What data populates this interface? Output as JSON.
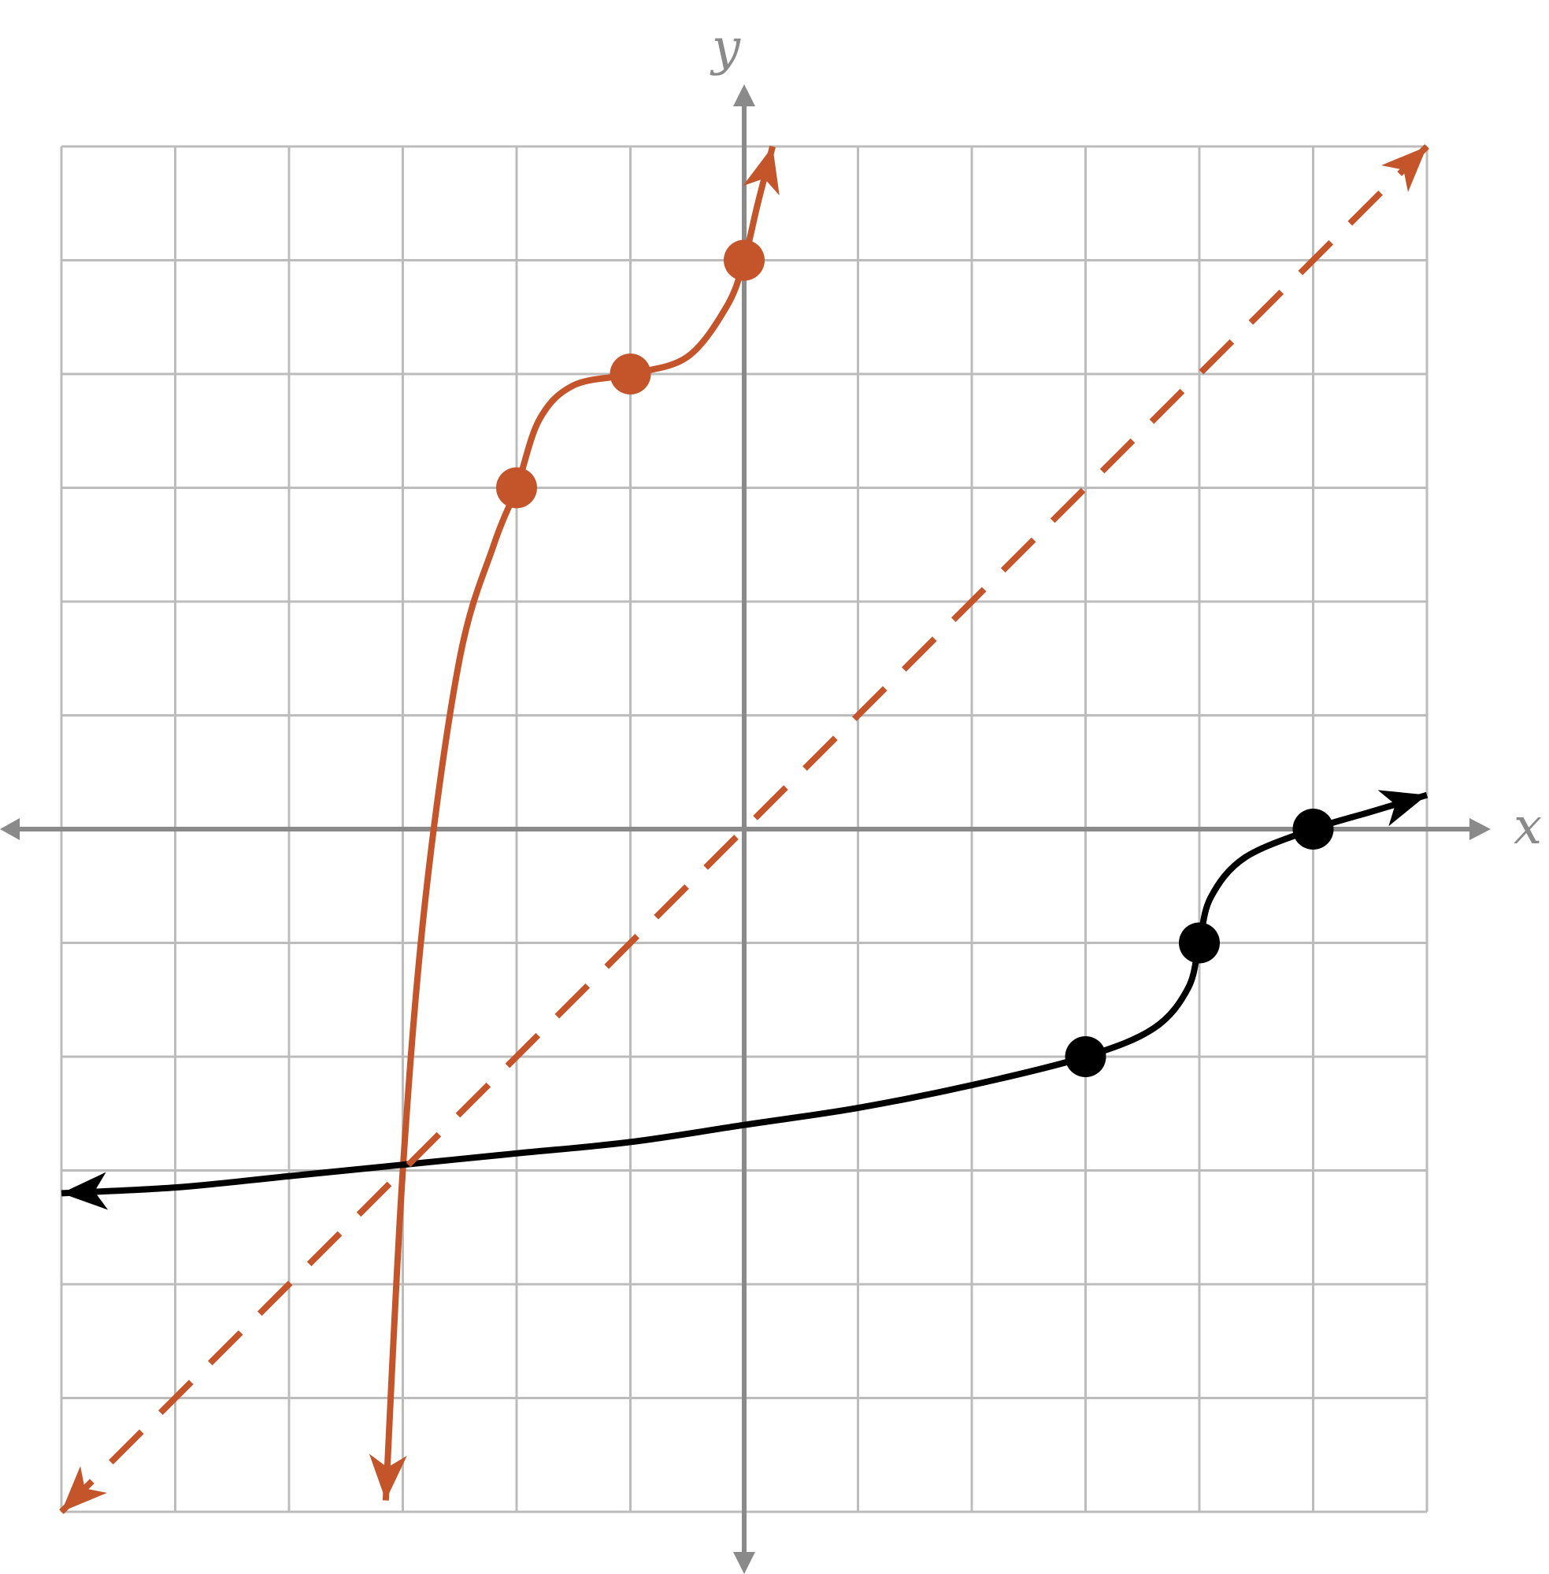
{
  "chart_data": {
    "type": "line",
    "title": "",
    "xlabel": "x",
    "ylabel": "y",
    "xlim": [
      -6,
      6
    ],
    "ylim": [
      -6,
      6
    ],
    "grid": true,
    "series": [
      {
        "style": "solid",
        "color": "#c4542a",
        "marked_points": [
          [
            -2,
            3
          ],
          [
            -1,
            4
          ],
          [
            0,
            5
          ]
        ],
        "arrow_ends": [
          [
            -3.15,
            -5.9
          ],
          [
            0.25,
            6.0
          ]
        ],
        "curve": [
          [
            -3.15,
            -5.9
          ],
          [
            -3,
            -3
          ],
          [
            -2.8,
            -0.6
          ],
          [
            -2.5,
            1.5
          ],
          [
            -2.2,
            2.5
          ],
          [
            -2,
            3
          ],
          [
            -1.8,
            3.6
          ],
          [
            -1.5,
            3.9
          ],
          [
            -1,
            4
          ],
          [
            -0.5,
            4.15
          ],
          [
            -0.15,
            4.6
          ],
          [
            0,
            5
          ],
          [
            0.12,
            5.5
          ],
          [
            0.25,
            6.0
          ]
        ]
      },
      {
        "style": "solid",
        "color": "#000000",
        "marked_points": [
          [
            3,
            -2
          ],
          [
            4,
            -1
          ],
          [
            5,
            0
          ]
        ],
        "arrow_ends": [
          [
            -6,
            -3.2
          ],
          [
            6,
            0.3
          ]
        ],
        "curve": [
          [
            -6,
            -3.2
          ],
          [
            -5,
            -3.15
          ],
          [
            -4,
            -3.05
          ],
          [
            -3,
            -2.95
          ],
          [
            -2,
            -2.85
          ],
          [
            -1,
            -2.75
          ],
          [
            0,
            -2.6
          ],
          [
            1,
            -2.45
          ],
          [
            2,
            -2.25
          ],
          [
            3,
            -2
          ],
          [
            3.6,
            -1.75
          ],
          [
            3.9,
            -1.4
          ],
          [
            4,
            -1
          ],
          [
            4.1,
            -0.6
          ],
          [
            4.4,
            -0.25
          ],
          [
            5,
            0
          ],
          [
            5.5,
            0.15
          ],
          [
            6,
            0.3
          ]
        ]
      },
      {
        "style": "dashed",
        "color": "#c4542a",
        "arrow_ends": [
          [
            -6,
            -6
          ],
          [
            6,
            6
          ]
        ],
        "curve": [
          [
            -6,
            -6
          ],
          [
            6,
            6
          ]
        ]
      }
    ],
    "colors": {
      "grid": "#bcbcbc",
      "axis": "#8a8a8a",
      "orange": "#c4542a",
      "black": "#000000"
    }
  }
}
